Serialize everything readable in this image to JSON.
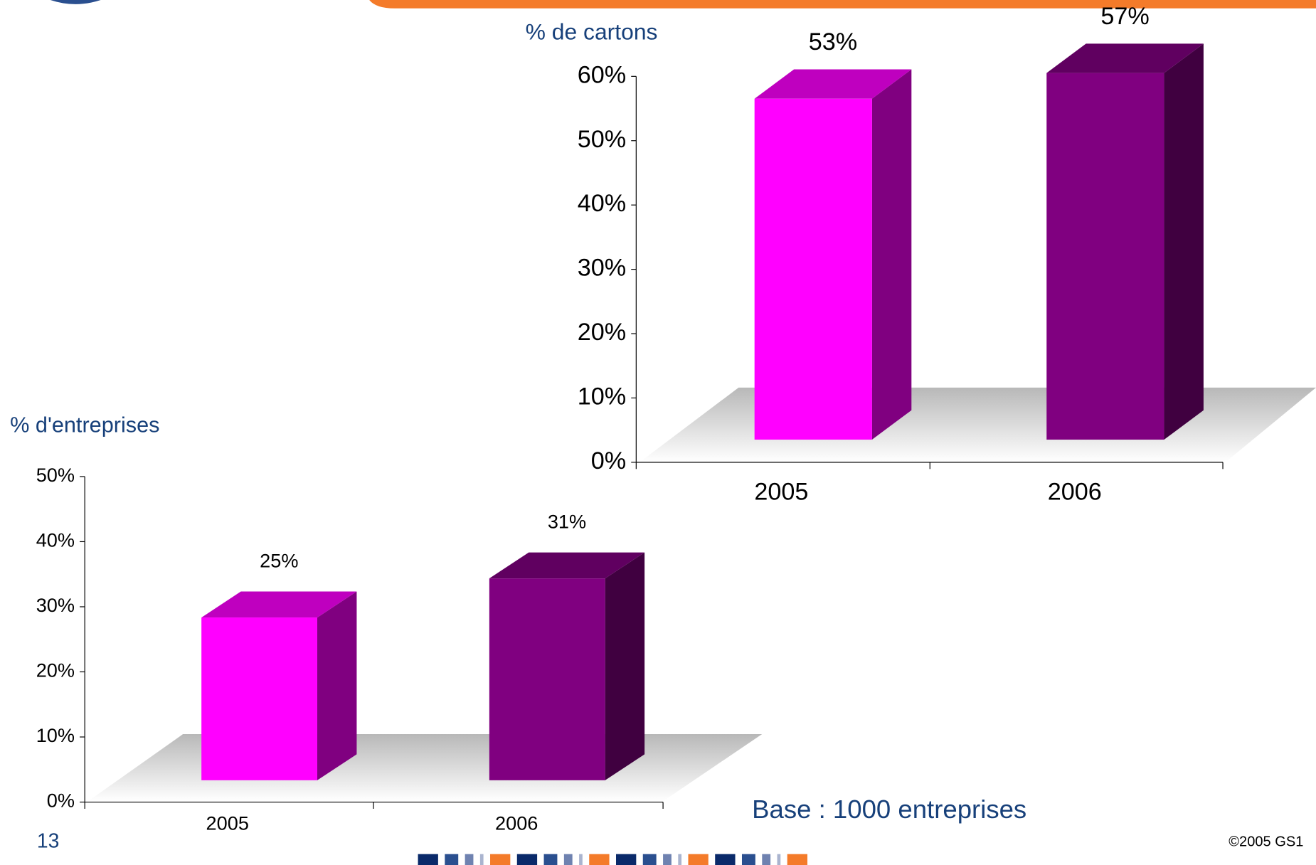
{
  "chart_data": [
    {
      "type": "bar3d",
      "ylabel": "% de cartons",
      "categories": [
        "2005",
        "2006"
      ],
      "values": [
        53,
        57
      ],
      "value_labels": [
        "53%",
        "57%"
      ],
      "colors": [
        "#ff00ff",
        "#800080"
      ],
      "ylim": [
        0,
        60
      ],
      "yticks": [
        {
          "value": 0,
          "label": "0%"
        },
        {
          "value": 10,
          "label": "10%"
        },
        {
          "value": 20,
          "label": "20%"
        },
        {
          "value": 30,
          "label": "30%"
        },
        {
          "value": 40,
          "label": "40%"
        },
        {
          "value": 50,
          "label": "50%"
        },
        {
          "value": 60,
          "label": "60%"
        }
      ]
    },
    {
      "type": "bar3d",
      "ylabel": "% d'entreprises",
      "categories": [
        "2005",
        "2006"
      ],
      "values": [
        25,
        31
      ],
      "value_labels": [
        "25%",
        "31%"
      ],
      "colors": [
        "#ff00ff",
        "#800080"
      ],
      "ylim": [
        0,
        50
      ],
      "yticks": [
        {
          "value": 0,
          "label": "0%"
        },
        {
          "value": 10,
          "label": "10%"
        },
        {
          "value": 20,
          "label": "20%"
        },
        {
          "value": 30,
          "label": "30%"
        },
        {
          "value": 40,
          "label": "40%"
        },
        {
          "value": 50,
          "label": "50%"
        }
      ]
    }
  ],
  "note": "Base : 1000 entreprises",
  "page_number": "13",
  "copyright": "©2005 GS1"
}
